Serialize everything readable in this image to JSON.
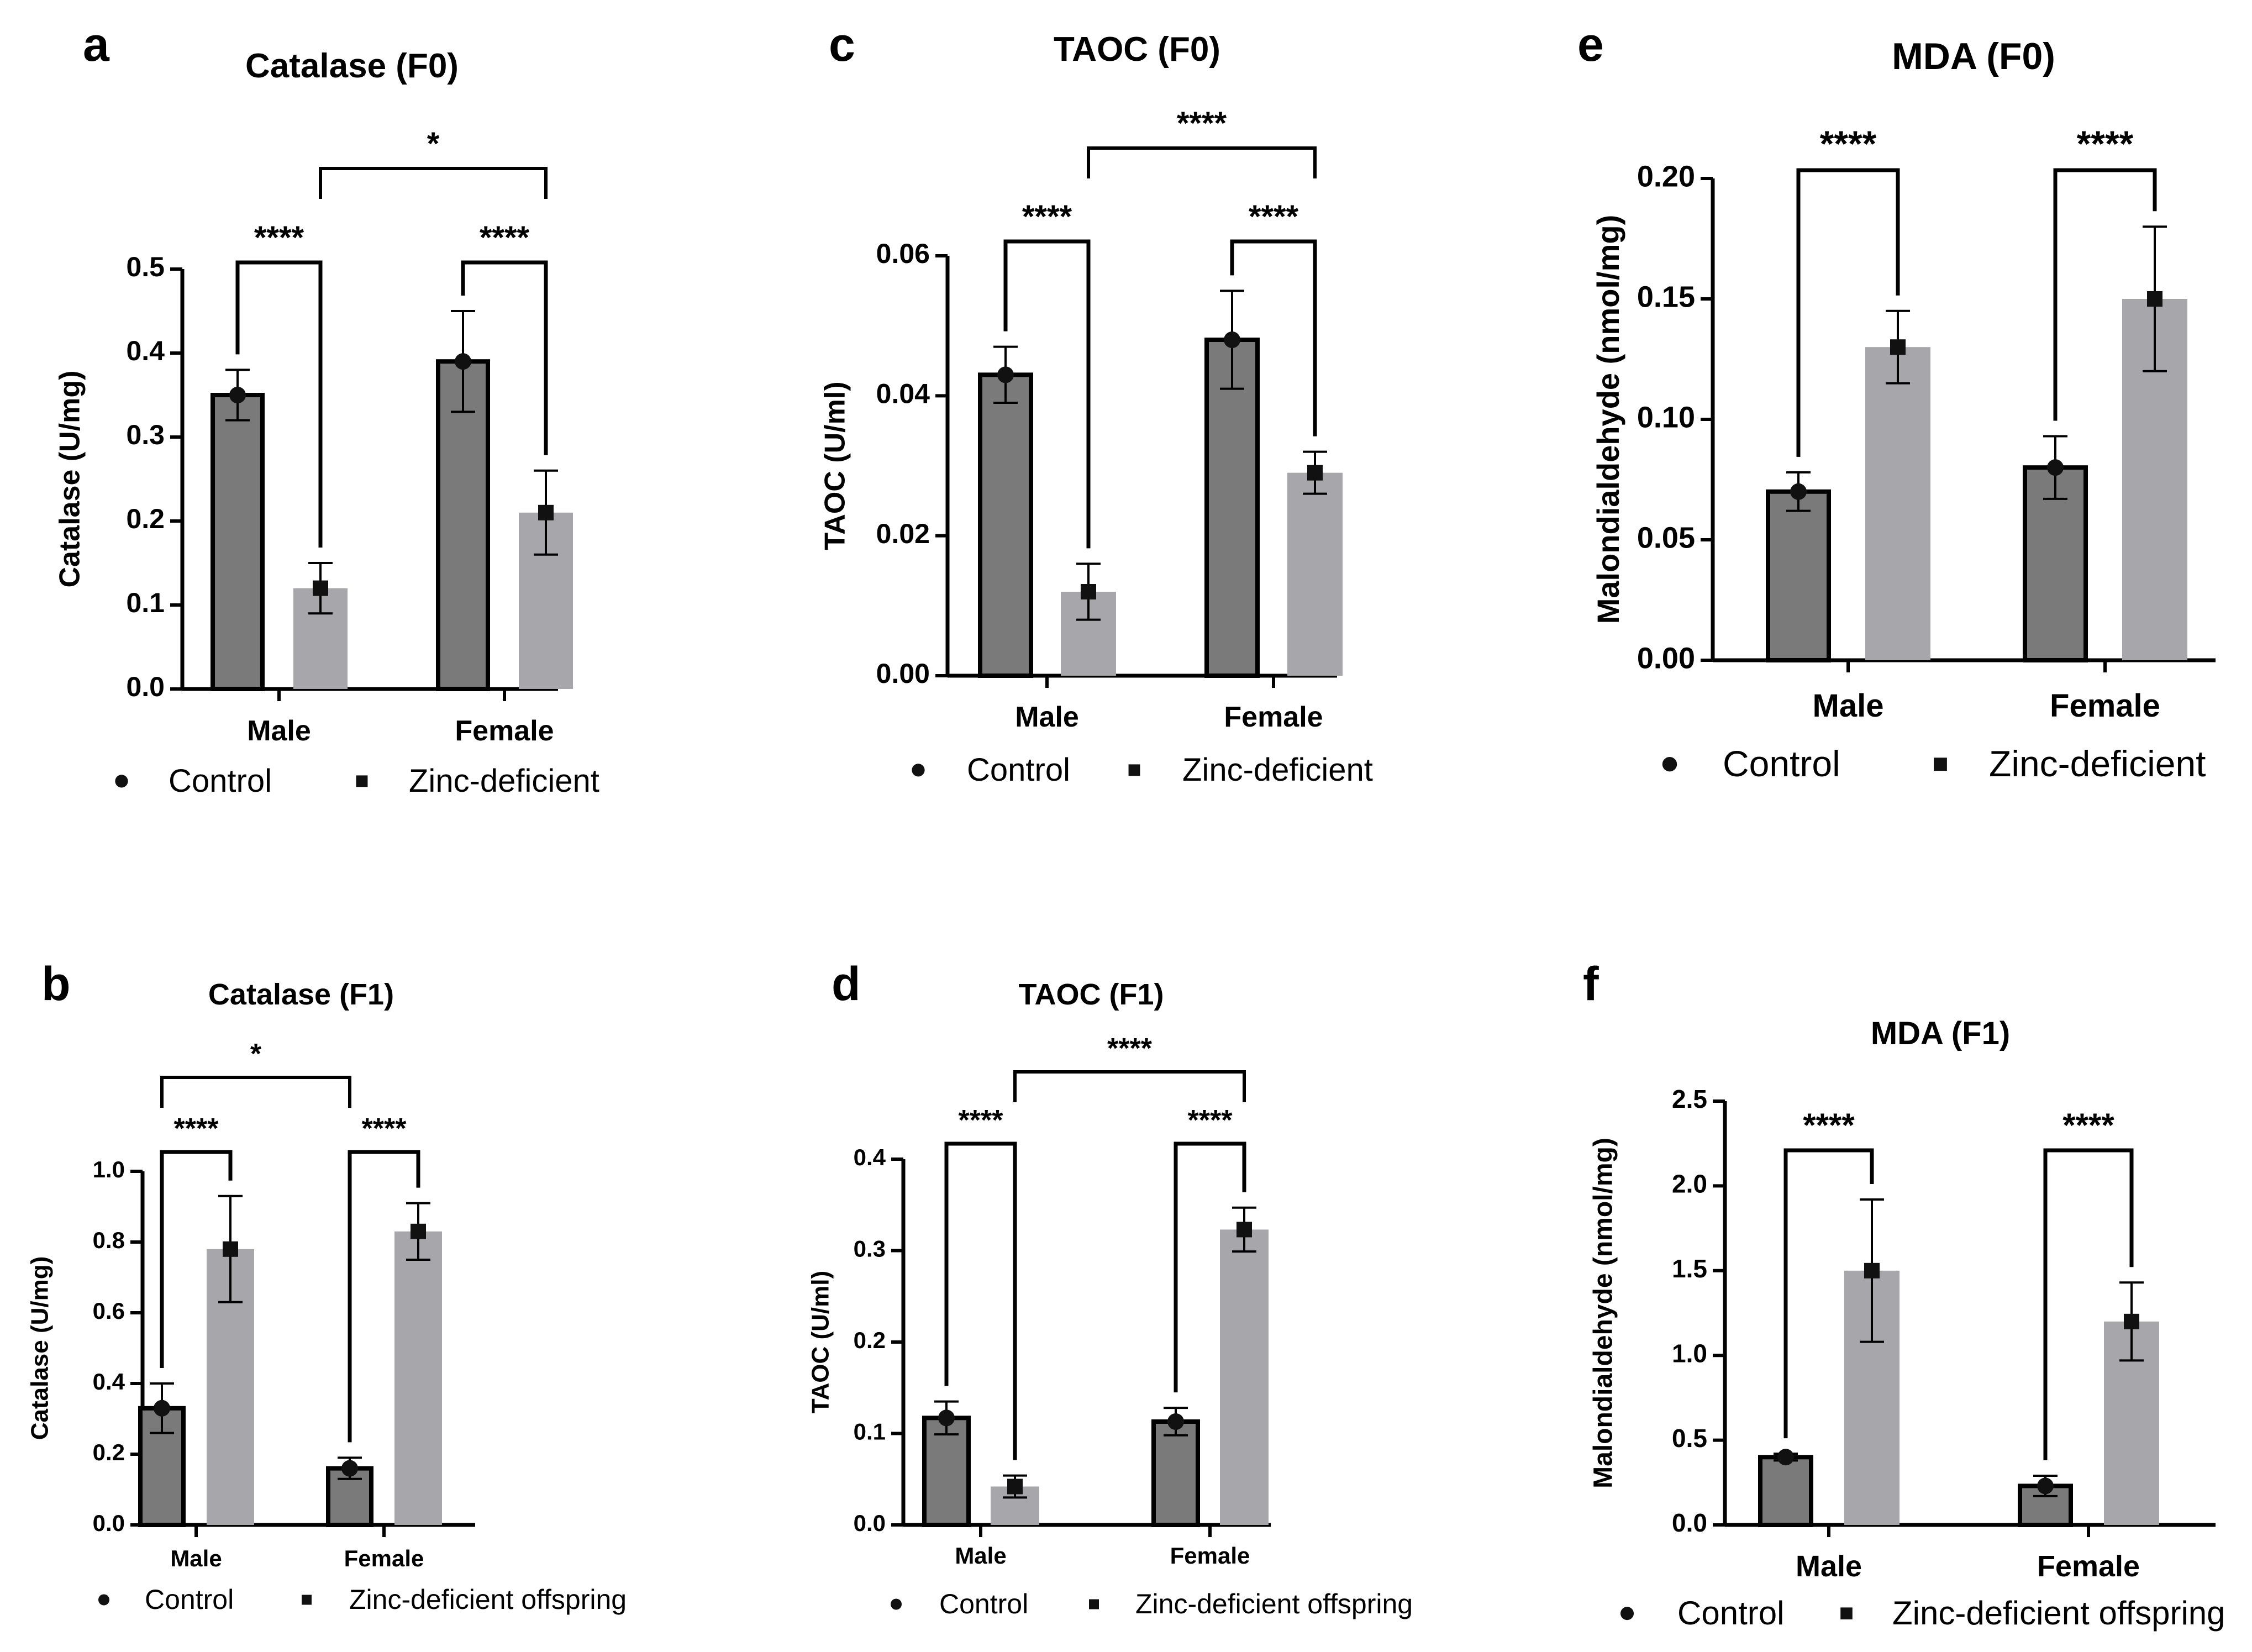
{
  "colors": {
    "control": "#7a7a7a",
    "zinc": "#a6a6ab",
    "axis": "#000000"
  },
  "chart_data": [
    {
      "id": "a",
      "panel": "a",
      "type": "bar",
      "title": "Catalase (F0)",
      "ylabel": "Catalase (U/mg)",
      "categories": [
        "Male",
        "Female"
      ],
      "ylim": [
        0,
        0.5
      ],
      "yticks": [
        "0.0",
        "0.1",
        "0.2",
        "0.3",
        "0.4",
        "0.5"
      ],
      "series": [
        {
          "name": "Control",
          "values": [
            0.35,
            0.39
          ],
          "errors": [
            0.03,
            0.06
          ]
        },
        {
          "name": "Zinc-deficient",
          "values": [
            0.12,
            0.21
          ],
          "errors": [
            0.03,
            0.05
          ]
        }
      ],
      "significance": {
        "within": [
          "****",
          "****"
        ],
        "between": "*",
        "between_series": "Zinc-deficient"
      }
    },
    {
      "id": "b",
      "panel": "b",
      "type": "bar",
      "title": "Catalase (F1)",
      "ylabel": "Catalase (U/mg)",
      "categories": [
        "Male",
        "Female"
      ],
      "ylim": [
        0,
        1.0
      ],
      "yticks": [
        "0.0",
        "0.2",
        "0.4",
        "0.6",
        "0.8",
        "1.0"
      ],
      "series": [
        {
          "name": "Control",
          "values": [
            0.33,
            0.16
          ],
          "errors": [
            0.07,
            0.03
          ]
        },
        {
          "name": "Zinc-deficient offspring",
          "values": [
            0.78,
            0.83
          ],
          "errors": [
            0.15,
            0.08
          ]
        }
      ],
      "significance": {
        "within": [
          "****",
          "****"
        ],
        "between": "*",
        "between_series": "Control"
      }
    },
    {
      "id": "c",
      "panel": "c",
      "type": "bar",
      "title": "TAOC (F0)",
      "ylabel": "TAOC (U/ml)",
      "categories": [
        "Male",
        "Female"
      ],
      "ylim": [
        0,
        0.06
      ],
      "yticks": [
        "0.00",
        "0.02",
        "0.04",
        "0.06"
      ],
      "series": [
        {
          "name": "Control",
          "values": [
            0.043,
            0.048
          ],
          "errors": [
            0.004,
            0.007
          ]
        },
        {
          "name": "Zinc-deficient",
          "values": [
            0.012,
            0.029
          ],
          "errors": [
            0.004,
            0.003
          ]
        }
      ],
      "significance": {
        "within": [
          "****",
          "****"
        ],
        "between": "****",
        "between_series": "Zinc-deficient"
      }
    },
    {
      "id": "d",
      "panel": "d",
      "type": "bar",
      "title": "TAOC (F1)",
      "ylabel": "TAOC (U/ml)",
      "categories": [
        "Male",
        "Female"
      ],
      "ylim": [
        0,
        0.4
      ],
      "yticks": [
        "0.0",
        "0.1",
        "0.2",
        "0.3",
        "0.4"
      ],
      "series": [
        {
          "name": "Control",
          "values": [
            0.117,
            0.113
          ],
          "errors": [
            0.018,
            0.015
          ]
        },
        {
          "name": "Zinc-deficient offspring",
          "values": [
            0.042,
            0.323
          ],
          "errors": [
            0.012,
            0.024
          ]
        }
      ],
      "significance": {
        "within": [
          "****",
          "****"
        ],
        "between": "****",
        "between_series": "Zinc-deficient offspring"
      }
    },
    {
      "id": "e",
      "panel": "e",
      "type": "bar",
      "title": "MDA (F0)",
      "ylabel": "Malondialdehyde (nmol/mg)",
      "categories": [
        "Male",
        "Female"
      ],
      "ylim": [
        0,
        0.2
      ],
      "yticks": [
        "0.00",
        "0.05",
        "0.10",
        "0.15",
        "0.20"
      ],
      "series": [
        {
          "name": "Control",
          "values": [
            0.07,
            0.08
          ],
          "errors": [
            0.008,
            0.013
          ]
        },
        {
          "name": "Zinc-deficient",
          "values": [
            0.13,
            0.15
          ],
          "errors": [
            0.015,
            0.03
          ]
        }
      ],
      "significance": {
        "within": [
          "****",
          "****"
        ]
      }
    },
    {
      "id": "f",
      "panel": "f",
      "type": "bar",
      "title": "MDA (F1)",
      "ylabel": "Malondialdehyde (nmol/mg)",
      "categories": [
        "Male",
        "Female"
      ],
      "ylim": [
        0,
        2.5
      ],
      "yticks": [
        "0.0",
        "0.5",
        "1.0",
        "1.5",
        "2.0",
        "2.5"
      ],
      "series": [
        {
          "name": "Control",
          "values": [
            0.4,
            0.23
          ],
          "errors": [
            0.02,
            0.06
          ]
        },
        {
          "name": "Zinc-deficient offspring",
          "values": [
            1.5,
            1.2
          ],
          "errors": [
            0.42,
            0.23
          ]
        }
      ],
      "significance": {
        "within": [
          "****",
          "****"
        ]
      }
    }
  ]
}
